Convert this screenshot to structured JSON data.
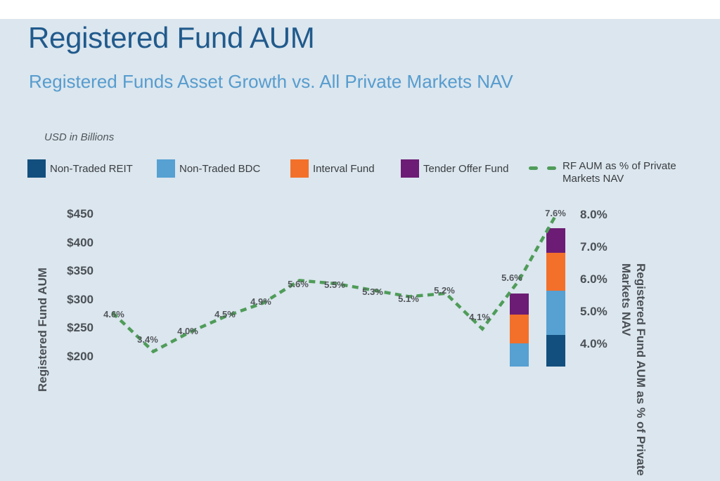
{
  "theme": {
    "background": "#dbe6ee",
    "top_bar": "#ffffff",
    "title_color": "#215a8c",
    "subtitle_color": "#579cce",
    "axis_text_color": "#4b5055",
    "data_label_color": "#54575c"
  },
  "header": {
    "title": "Registered Fund AUM",
    "subtitle": "Registered Funds Asset Growth vs. All Private Markets NAV"
  },
  "units_note": "USD in Billions",
  "legend": {
    "items": [
      {
        "label": "Non-Traded REIT",
        "color": "#134f7e"
      },
      {
        "label": "Non-Traded BDC",
        "color": "#56a0d2"
      },
      {
        "label": "Interval Fund",
        "color": "#f3702a"
      },
      {
        "label": "Tender Offer Fund",
        "color": "#6c1c74"
      }
    ],
    "line_item": {
      "label": "RF AUM as % of Private Markets NAV",
      "color": "#4f9c59"
    }
  },
  "chart_data": {
    "type": "combo",
    "subtypes": [
      "stacked-bar",
      "line"
    ],
    "left_axis": {
      "title": "Registered Fund AUM",
      "unit": "USD in Billions",
      "ticks": [
        {
          "label": "$450",
          "value": 450
        },
        {
          "label": "$400",
          "value": 400
        },
        {
          "label": "$350",
          "value": 350
        },
        {
          "label": "$300",
          "value": 300
        },
        {
          "label": "$250",
          "value": 250
        },
        {
          "label": "$200",
          "value": 200
        }
      ]
    },
    "right_axis": {
      "title": "Registered Fund AUM as % of Private Markets NAV",
      "ticks": [
        {
          "label": "8.0%",
          "value": 8.0
        },
        {
          "label": "7.0%",
          "value": 7.0
        },
        {
          "label": "6.0%",
          "value": 6.0
        },
        {
          "label": "5.0%",
          "value": 5.0
        },
        {
          "label": "4.0%",
          "value": 4.0
        }
      ]
    },
    "x_axis": {
      "point_count": 13,
      "labels_visible": false
    },
    "line_series": {
      "name": "RF AUM as % of Private Markets NAV",
      "values_pct": [
        4.6,
        3.4,
        4.0,
        4.5,
        4.9,
        5.6,
        5.5,
        5.3,
        5.1,
        5.2,
        4.1,
        5.6,
        7.6
      ],
      "labels": [
        "4.6%",
        "3.4%",
        "4.0%",
        "4.5%",
        "4.9%",
        "5.6%",
        "5.5%",
        "5.3%",
        "5.1%",
        "5.2%",
        "4.1%",
        "5.6%",
        "7.6%"
      ]
    },
    "stack_order_bottom_to_top": [
      "Non-Traded REIT",
      "Non-Traded BDC",
      "Interval Fund",
      "Tender Offer Fund"
    ],
    "bars_visible": [
      {
        "x_index": 11,
        "top_usd_b": 311,
        "segments": [
          {
            "name": "Non-Traded BDC",
            "from_usd_b": null,
            "to_usd_b": 223,
            "cropped_below": true
          },
          {
            "name": "Interval Fund",
            "from_usd_b": 223,
            "to_usd_b": 273
          },
          {
            "name": "Tender Offer Fund",
            "from_usd_b": 273,
            "to_usd_b": 311
          }
        ]
      },
      {
        "x_index": 12,
        "top_usd_b": 425,
        "segments": [
          {
            "name": "Non-Traded REIT",
            "from_usd_b": null,
            "to_usd_b": 238,
            "cropped_below": true
          },
          {
            "name": "Non-Traded BDC",
            "from_usd_b": 238,
            "to_usd_b": 316
          },
          {
            "name": "Interval Fund",
            "from_usd_b": 316,
            "to_usd_b": 382
          },
          {
            "name": "Tender Offer Fund",
            "from_usd_b": 382,
            "to_usd_b": 425
          }
        ]
      }
    ]
  }
}
